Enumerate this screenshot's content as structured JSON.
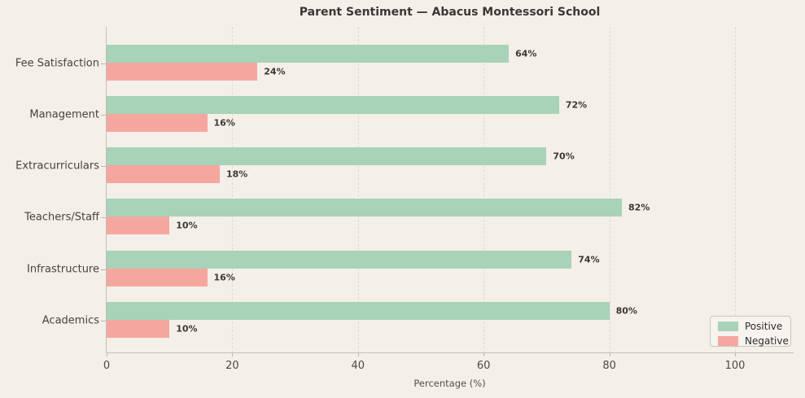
{
  "title": "Parent Sentiment — Abacus Montessori School",
  "colors": {
    "background": "#f4efe9",
    "positive": "#a8d3b8",
    "negative": "#f5a79f",
    "grid": "#ded9d3",
    "spine": "#c3bfba",
    "text": "#3b3936"
  },
  "chart_data": {
    "type": "bar",
    "orientation": "horizontal",
    "title": "Parent Sentiment — Abacus Montessori School",
    "categories": [
      "Fee Satisfaction",
      "Management",
      "Extracurriculars",
      "Teachers/Staff",
      "Infrastructure",
      "Academics"
    ],
    "series": [
      {
        "name": "Positive",
        "color": "#a8d3b8",
        "values": [
          64,
          72,
          70,
          82,
          74,
          80
        ]
      },
      {
        "name": "Negative",
        "color": "#f5a79f",
        "values": [
          24,
          16,
          18,
          10,
          16,
          10
        ]
      }
    ],
    "value_suffix": "%",
    "xlabel": "Percentage (%)",
    "xticks": [
      0,
      20,
      40,
      60,
      80,
      100
    ],
    "xlim": [
      0,
      109
    ],
    "grid": "dashed-vertical",
    "legend": {
      "position": "lower right",
      "entries": [
        "Positive",
        "Negative"
      ]
    }
  }
}
